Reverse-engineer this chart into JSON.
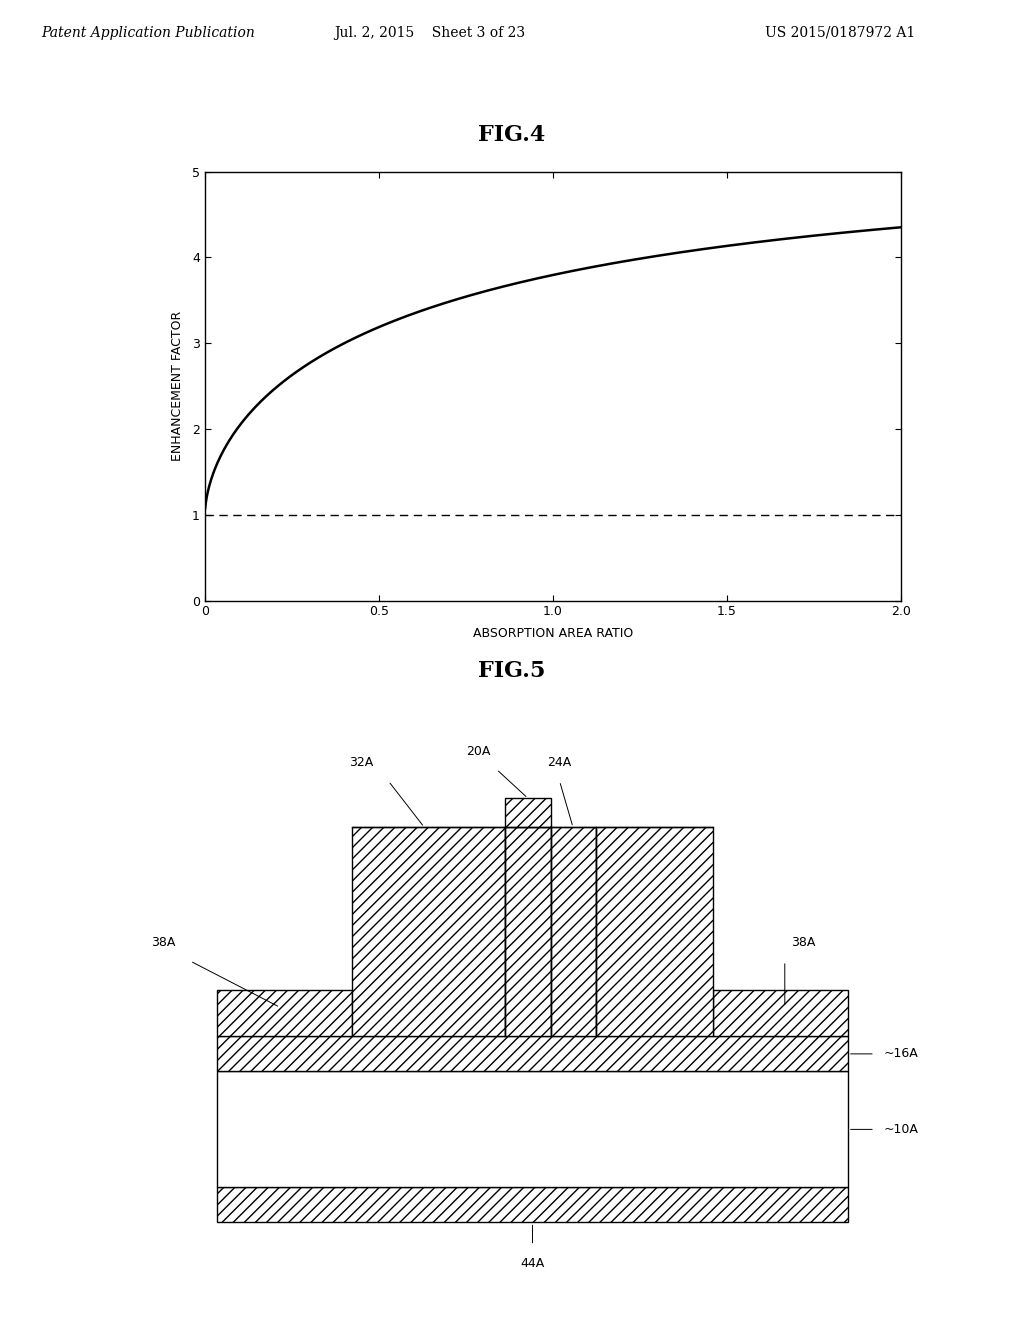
{
  "header_left": "Patent Application Publication",
  "header_mid": "Jul. 2, 2015    Sheet 3 of 23",
  "header_right": "US 2015/0187972 A1",
  "fig4_title": "FIG.4",
  "fig4_xlabel": "ABSORPTION AREA RATIO",
  "fig4_ylabel": "ENHANCEMENT FACTOR",
  "fig4_xlim": [
    0,
    2.0
  ],
  "fig4_ylim": [
    0,
    5
  ],
  "fig4_xticks": [
    0,
    0.5,
    1.0,
    1.5,
    2.0
  ],
  "fig4_yticks": [
    0,
    1,
    2,
    3,
    4,
    5
  ],
  "fig5_title": "FIG.5",
  "bg_color": "#ffffff",
  "line_color": "#000000",
  "header_fontsize": 10,
  "title_fontsize": 16,
  "axis_label_fontsize": 9,
  "tick_fontsize": 9,
  "annot_fontsize": 9
}
